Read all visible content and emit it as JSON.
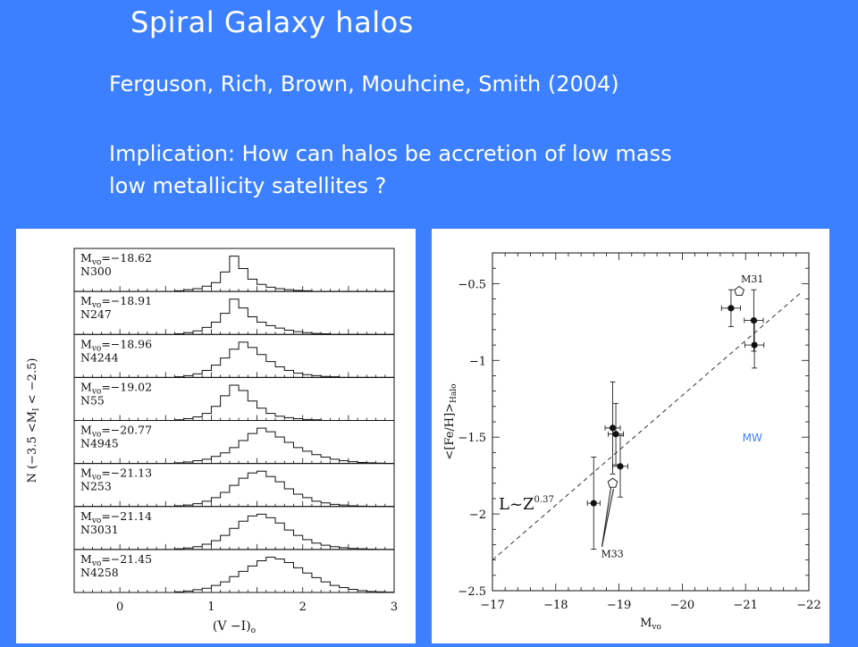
{
  "slide": {
    "title": "Spiral Galaxy halos",
    "citation": "Ferguson, Rich, Brown, Mouhcine, Smith (2004)",
    "implication_line1": "Implication: How can halos be accretion of low mass",
    "implication_line2": "low metallicity satellites ?"
  },
  "colors": {
    "background": "#3d80ff",
    "text": "#ffffff",
    "panel": "#ffffff",
    "ink": "#111111",
    "mw_label": "#3d80ff"
  },
  "chart_data": [
    {
      "type": "bar",
      "subtype": "stacked-histograms",
      "xlabel": "(V −I)o",
      "ylabel": "N (−3.5 <MI < −2.5)",
      "xlim": [
        -0.5,
        3
      ],
      "xticks": [
        "0",
        "1",
        "2",
        "3"
      ],
      "bin_edges": [
        0.6,
        0.7,
        0.8,
        0.9,
        1.0,
        1.1,
        1.2,
        1.3,
        1.4,
        1.5,
        1.6,
        1.7,
        1.8,
        1.9,
        2.0,
        2.1,
        2.2,
        2.3,
        2.4,
        2.5,
        2.6,
        2.7,
        2.8,
        2.9,
        3.0
      ],
      "series": [
        {
          "name": "N300",
          "label": "Mvo=−18.62",
          "values": [
            0.02,
            0.05,
            0.08,
            0.15,
            0.25,
            0.55,
            1.0,
            0.65,
            0.35,
            0.2,
            0.12,
            0.08,
            0.05,
            0.03,
            0.02,
            0,
            0,
            0,
            0,
            0,
            0,
            0,
            0,
            0
          ]
        },
        {
          "name": "N247",
          "label": "Mvo=−18.91",
          "values": [
            0.02,
            0.05,
            0.1,
            0.2,
            0.35,
            0.6,
            1.0,
            0.75,
            0.5,
            0.35,
            0.25,
            0.18,
            0.12,
            0.08,
            0.05,
            0.03,
            0.02,
            0,
            0,
            0,
            0,
            0,
            0,
            0
          ]
        },
        {
          "name": "N4244",
          "label": "Mvo=−18.96",
          "values": [
            0.02,
            0.05,
            0.1,
            0.2,
            0.35,
            0.55,
            0.8,
            1.0,
            0.85,
            0.65,
            0.45,
            0.3,
            0.2,
            0.12,
            0.08,
            0.05,
            0.03,
            0.02,
            0,
            0,
            0,
            0,
            0,
            0
          ]
        },
        {
          "name": "N55",
          "label": "Mvo=−19.02",
          "values": [
            0.02,
            0.05,
            0.1,
            0.2,
            0.4,
            0.7,
            1.0,
            0.85,
            0.55,
            0.35,
            0.2,
            0.12,
            0.08,
            0.05,
            0.03,
            0.02,
            0,
            0,
            0,
            0,
            0,
            0,
            0,
            0
          ]
        },
        {
          "name": "N4945",
          "label": "Mvo=−20.77",
          "values": [
            0.02,
            0.04,
            0.08,
            0.12,
            0.2,
            0.3,
            0.45,
            0.65,
            0.85,
            1.0,
            0.9,
            0.75,
            0.6,
            0.45,
            0.35,
            0.25,
            0.18,
            0.12,
            0.08,
            0.05,
            0.03,
            0.02,
            0.01,
            0
          ]
        },
        {
          "name": "N253",
          "label": "Mvo=−21.13",
          "values": [
            0.02,
            0.04,
            0.08,
            0.15,
            0.25,
            0.4,
            0.6,
            0.8,
            0.95,
            1.0,
            0.85,
            0.7,
            0.5,
            0.35,
            0.25,
            0.15,
            0.1,
            0.06,
            0.04,
            0.02,
            0.01,
            0,
            0,
            0
          ]
        },
        {
          "name": "N3031",
          "label": "Mvo=−21.14",
          "values": [
            0.02,
            0.04,
            0.08,
            0.15,
            0.25,
            0.4,
            0.6,
            0.8,
            0.95,
            1.0,
            0.9,
            0.75,
            0.55,
            0.4,
            0.28,
            0.18,
            0.12,
            0.08,
            0.05,
            0.03,
            0.02,
            0.01,
            0,
            0
          ]
        },
        {
          "name": "N4258",
          "label": "Mvo=−21.45",
          "values": [
            0.02,
            0.04,
            0.08,
            0.12,
            0.2,
            0.3,
            0.45,
            0.6,
            0.75,
            0.9,
            1.0,
            0.95,
            0.85,
            0.7,
            0.55,
            0.42,
            0.3,
            0.2,
            0.14,
            0.09,
            0.05,
            0.03,
            0.02,
            0.01
          ]
        }
      ]
    },
    {
      "type": "scatter",
      "xlabel": "Mvo",
      "ylabel": "<[Fe/H]>Halo",
      "xlim": [
        -17,
        -22
      ],
      "ylim": [
        -2.5,
        -0.3
      ],
      "xticks": [
        "−17",
        "−18",
        "−19",
        "−20",
        "−21",
        "−22"
      ],
      "yticks": [
        "−0.5",
        "−1",
        "−1.5",
        "−2",
        "−2.5"
      ],
      "points": [
        {
          "x": -18.6,
          "y": -1.93,
          "xerr": 0.1,
          "yerr": 0.3
        },
        {
          "x": -18.9,
          "y": -1.44,
          "xerr": 0.12,
          "yerr": 0.3
        },
        {
          "x": -18.95,
          "y": -1.48,
          "xerr": 0.12,
          "yerr": 0.2
        },
        {
          "x": -19.02,
          "y": -1.69,
          "xerr": 0.12,
          "yerr": 0.2
        },
        {
          "x": -20.77,
          "y": -0.66,
          "xerr": 0.15,
          "yerr": 0.12
        },
        {
          "x": -21.13,
          "y": -0.74,
          "xerr": 0.15,
          "yerr": 0.2
        },
        {
          "x": -21.14,
          "y": -0.9,
          "xerr": 0.15,
          "yerr": 0.15
        }
      ],
      "open_markers": [
        {
          "name": "M31",
          "x": -20.9,
          "y": -0.55
        },
        {
          "name": "M33",
          "x": -18.9,
          "y": -1.8
        }
      ],
      "fit_line": {
        "label": "L~Z0.37",
        "x": [
          -17.0,
          -21.9
        ],
        "y": [
          -2.3,
          -0.55
        ]
      },
      "annotations": [
        "MW"
      ]
    }
  ]
}
